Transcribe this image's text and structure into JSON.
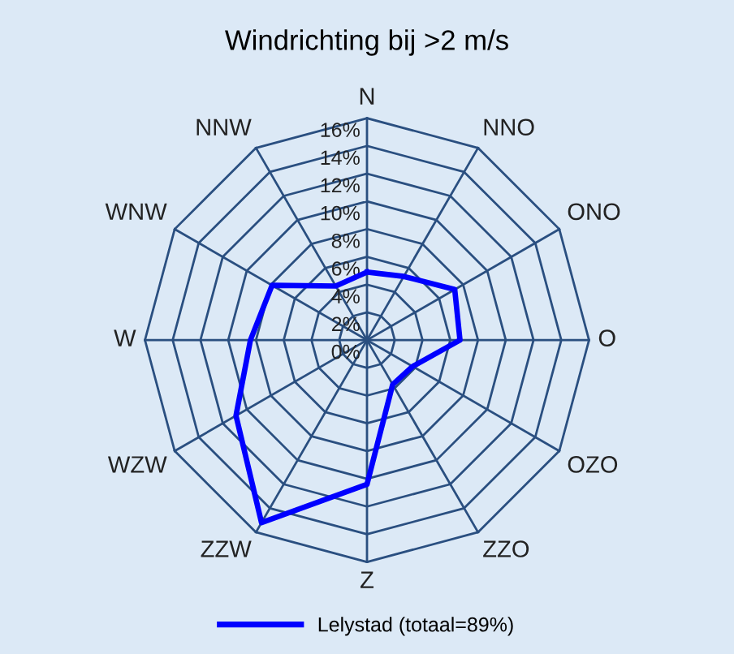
{
  "chart_data": {
    "type": "radar",
    "title": "Windrichting bij >2 m/s",
    "categories": [
      "N",
      "NNO",
      "ONO",
      "O",
      "OZO",
      "ZZO",
      "Z",
      "ZZW",
      "WZW",
      "W",
      "WNW",
      "NNW"
    ],
    "series": [
      {
        "name": "Lelystad (totaal=89%)",
        "color": "#0000ff",
        "values": [
          4.9,
          5.3,
          7.3,
          6.7,
          3.8,
          3.7,
          10.4,
          15.2,
          10.9,
          8.4,
          7.9,
          4.5
        ]
      }
    ],
    "ylim": [
      0,
      16
    ],
    "yticks": [
      {
        "value": 0,
        "label": "0%"
      },
      {
        "value": 2,
        "label": "2%"
      },
      {
        "value": 4,
        "label": "4%"
      },
      {
        "value": 6,
        "label": "6%"
      },
      {
        "value": 8,
        "label": "8%"
      },
      {
        "value": 10,
        "label": "10%"
      },
      {
        "value": 12,
        "label": "12%"
      },
      {
        "value": 14,
        "label": "14%"
      },
      {
        "value": 16,
        "label": "16%"
      }
    ],
    "grid": true,
    "legend": "bottom"
  }
}
